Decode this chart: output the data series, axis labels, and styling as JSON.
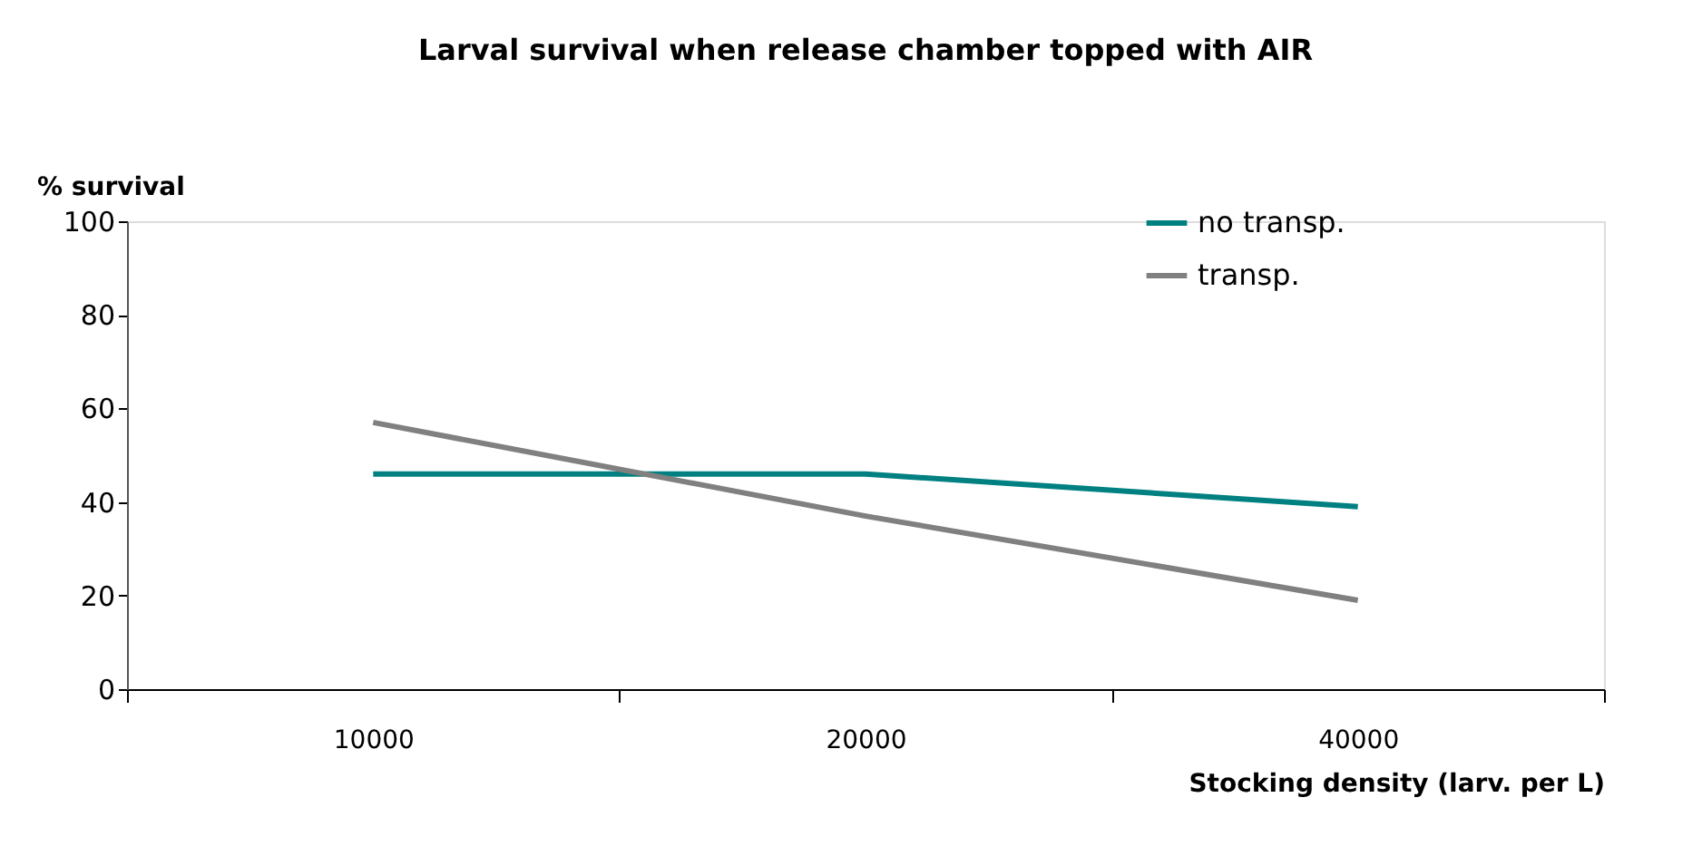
{
  "chart_data": {
    "type": "line",
    "title": "Larval survival when release chamber topped with AIR",
    "xlabel": "Stocking density (larv. per L)",
    "ylabel": "% survival",
    "categories": [
      "10000",
      "20000",
      "40000"
    ],
    "series": [
      {
        "name": "no transp.",
        "color": "#008080",
        "values": [
          46,
          46,
          39
        ]
      },
      {
        "name": "transp.",
        "color": "#808080",
        "values": [
          57,
          37,
          19
        ]
      }
    ],
    "ylim": [
      0,
      100
    ],
    "yticks": [
      0,
      20,
      40,
      60,
      80,
      100
    ],
    "grid": false,
    "legend": "top right",
    "marker": "none",
    "line_style": "solid"
  }
}
